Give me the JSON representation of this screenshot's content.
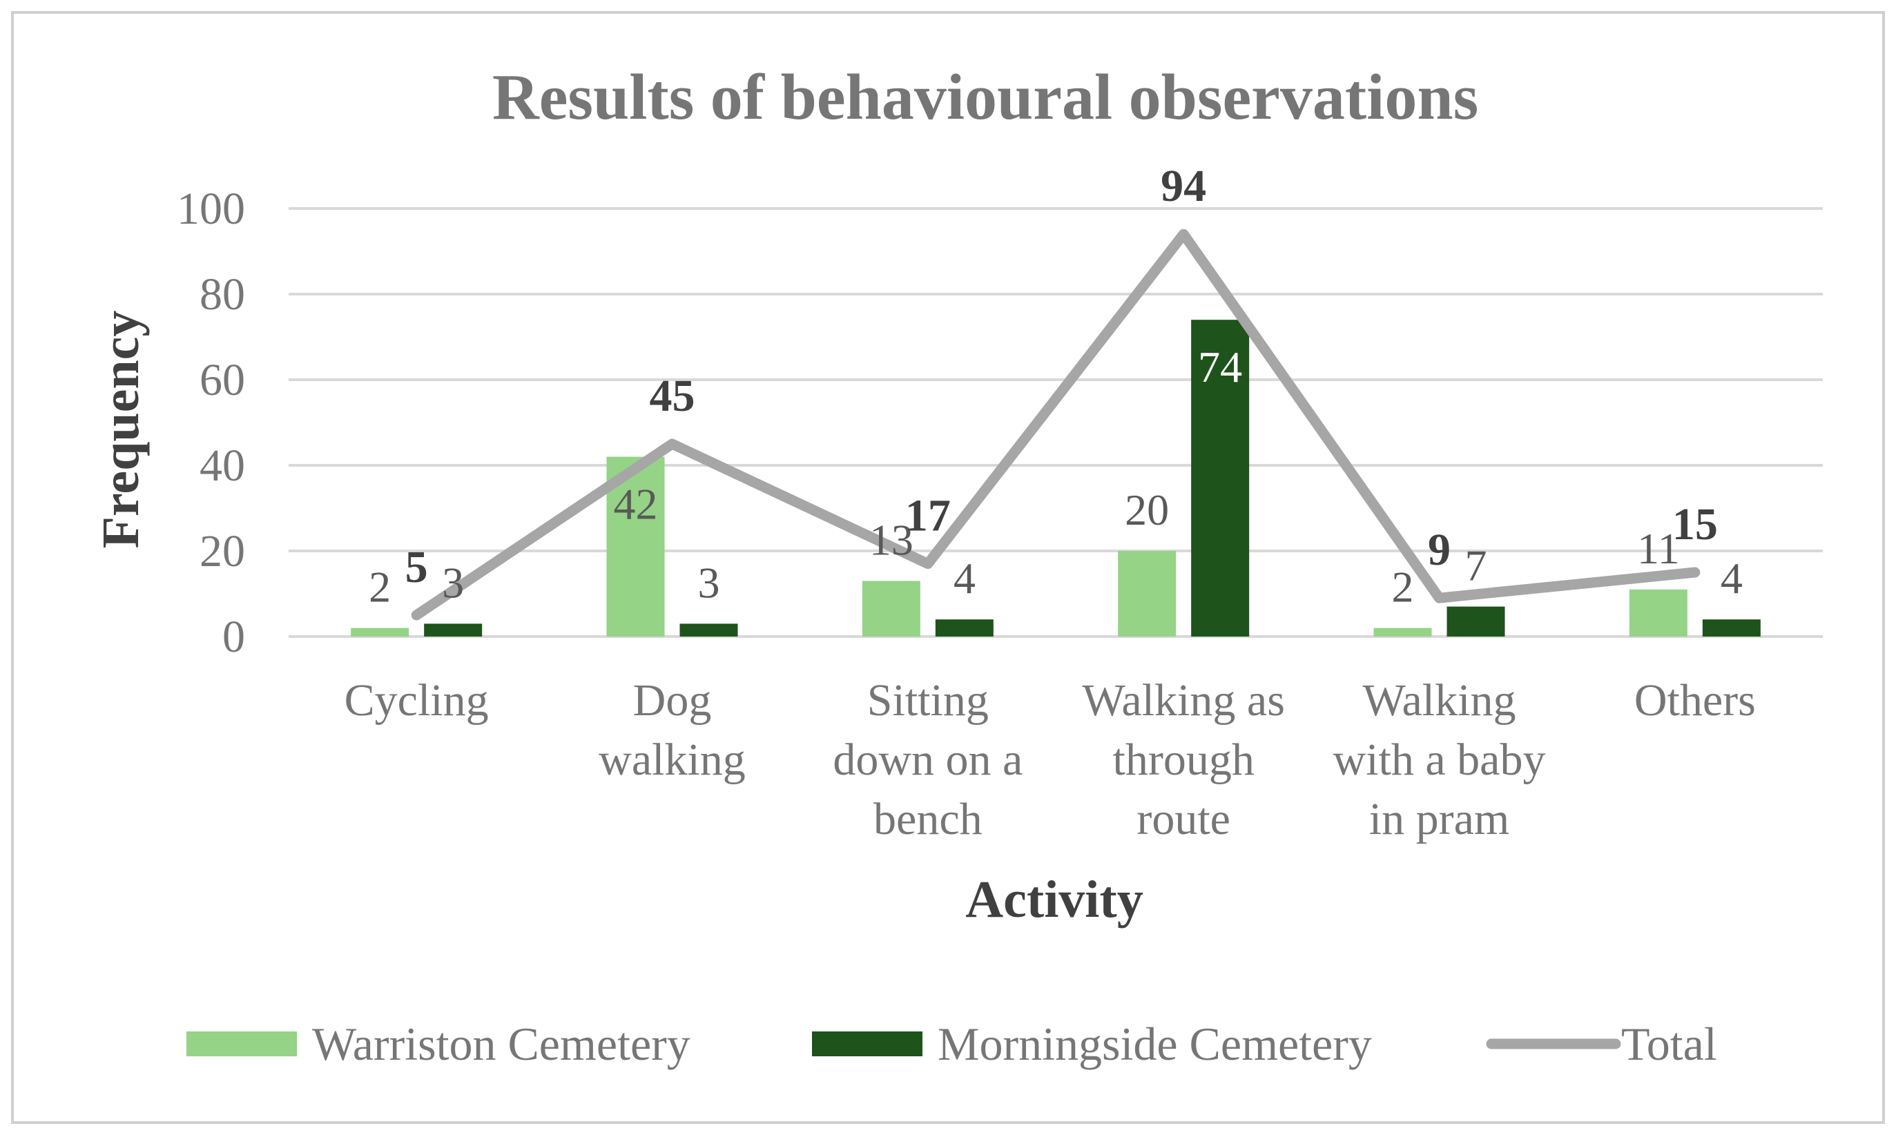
{
  "chart_data": {
    "type": "bar",
    "title": "Results of behavioural observations",
    "xlabel": "Activity",
    "ylabel": "Frequency",
    "ylim": [
      0,
      100
    ],
    "yticks": [
      0,
      20,
      40,
      60,
      80,
      100
    ],
    "grid": true,
    "legend_position": "bottom",
    "categories": [
      [
        "Cycling"
      ],
      [
        "Dog",
        "walking"
      ],
      [
        "Sitting",
        "down on a",
        "bench"
      ],
      [
        "Walking as",
        "through",
        "route"
      ],
      [
        "Walking",
        "with a baby",
        "in pram"
      ],
      [
        "Others"
      ]
    ],
    "series": [
      {
        "name": "Warriston Cemetery",
        "type": "bar",
        "color": "#95d387",
        "values": [
          2,
          42,
          13,
          20,
          2,
          11
        ]
      },
      {
        "name": "Morningside Cemetery",
        "type": "bar",
        "color": "#1e531c",
        "values": [
          3,
          3,
          4,
          74,
          7,
          4
        ]
      },
      {
        "name": "Total",
        "type": "line",
        "color": "#a6a6a6",
        "values": [
          5,
          45,
          17,
          94,
          9,
          15
        ]
      }
    ]
  }
}
